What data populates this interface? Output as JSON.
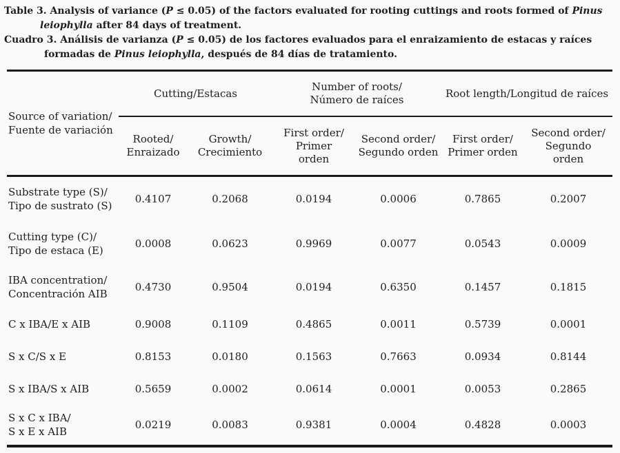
{
  "colors": {
    "background": "#fafafa",
    "text": "#1e1e1e",
    "rule": "#1a1a1a"
  },
  "captions": {
    "english": [
      [
        {
          "t": "Table 3. Analysis of variance ("
        },
        {
          "t": "P",
          "i": true
        },
        {
          "t": " ≤ 0.05) of the factors evaluated for rooting cuttings and roots formed of "
        },
        {
          "t": "Pinus",
          "i": true
        }
      ],
      [
        {
          "t": "leiophylla",
          "i": true
        },
        {
          "t": " after 84 days of treatment."
        }
      ]
    ],
    "spanish": [
      [
        {
          "t": "Cuadro 3. Análisis de varianza ("
        },
        {
          "t": "P",
          "i": true
        },
        {
          "t": " ≤ 0.05) de los factores evaluados para el enraizamiento de estacas y raíces"
        }
      ],
      [
        {
          "t": "formadas de "
        },
        {
          "t": "Pinus leiophylla",
          "i": true
        },
        {
          "t": ", después de 84 días de tratamiento."
        }
      ]
    ]
  },
  "table": {
    "stub_lines": [
      "Source of variation/",
      "Fuente de variación"
    ],
    "groups": [
      [
        "Cutting/Estacas"
      ],
      [
        "Number of roots/",
        "Número de raíces"
      ],
      [
        "Root length/Longitud de raíces"
      ]
    ],
    "subheaders": [
      [
        "Rooted/",
        "Enraizado"
      ],
      [
        "Growth/",
        "Crecimiento"
      ],
      [
        "First order/",
        "Primer",
        "orden"
      ],
      [
        "Second order/",
        "Segundo orden"
      ],
      [
        "First order/",
        "Primer orden"
      ],
      [
        "Second order/",
        "Segundo",
        "orden"
      ]
    ],
    "rows": [
      {
        "label": [
          "Substrate type (S)/",
          "Tipo de sustrato (S)"
        ],
        "values": [
          "0.4107",
          "0.2068",
          "0.0194",
          "0.0006",
          "0.7865",
          "0.2007"
        ]
      },
      {
        "label": [
          "Cutting type (C)/",
          "Tipo de estaca (E)"
        ],
        "values": [
          "0.0008",
          "0.0623",
          "0.9969",
          "0.0077",
          "0.0543",
          "0.0009"
        ]
      },
      {
        "label": [
          "IBA concentration/",
          "Concentración AIB"
        ],
        "values": [
          "0.4730",
          "0.9504",
          "0.0194",
          "0.6350",
          "0.1457",
          "0.1815"
        ]
      },
      {
        "label": [
          "C x IBA/E x AIB"
        ],
        "values": [
          "0.9008",
          "0.1109",
          "0.4865",
          "0.0011",
          "0.5739",
          "0.0001"
        ]
      },
      {
        "label": [
          "S x C/S x E"
        ],
        "values": [
          "0.8153",
          "0.0180",
          "0.1563",
          "0.7663",
          "0.0934",
          "0.8144"
        ]
      },
      {
        "label": [
          "S x IBA/S x AIB"
        ],
        "values": [
          "0.5659",
          "0.0002",
          "0.0614",
          "0.0001",
          "0.0053",
          "0.2865"
        ]
      },
      {
        "label": [
          "S x C x IBA/",
          "S x E x AIB"
        ],
        "values": [
          "0.0219",
          "0.0083",
          "0.9381",
          "0.0004",
          "0.4828",
          "0.0003"
        ]
      }
    ]
  }
}
